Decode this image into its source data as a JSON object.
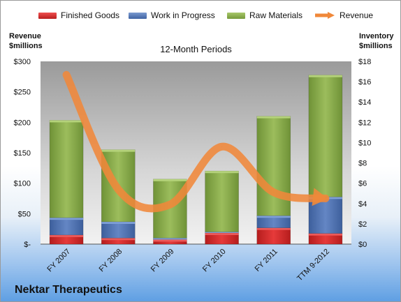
{
  "company_name": "Nektar Therapeutics",
  "chart_data": {
    "type": "bar",
    "stacked": true,
    "title": "12-Month Periods",
    "y_left_title": [
      "Revenue",
      "$millions"
    ],
    "y_right_title": [
      "Inventory",
      "$millions"
    ],
    "categories": [
      "FY 2007",
      "FY 2008",
      "FY 2009",
      "FY 2010",
      "FY 2011",
      "TTM 9-2012"
    ],
    "y_left_ticks": [
      "$-",
      "$50",
      "$100",
      "$150",
      "$200",
      "$250",
      "$300"
    ],
    "y_right_ticks": [
      "$0",
      "$2",
      "$4",
      "$6",
      "$8",
      "$10",
      "$12",
      "$14",
      "$16",
      "$18"
    ],
    "ylim_left": [
      0,
      300
    ],
    "ylim_right": [
      0,
      18
    ],
    "series": [
      {
        "name": "Finished Goods",
        "axis": "right",
        "color": "#d92b2b",
        "values": [
          0.9,
          0.6,
          0.45,
          1.1,
          1.6,
          1.05
        ]
      },
      {
        "name": "Work in Progress",
        "axis": "right",
        "color": "#5379b9",
        "values": [
          1.7,
          1.6,
          0.15,
          0.1,
          1.2,
          3.6
        ]
      },
      {
        "name": "Raw Materials",
        "axis": "right",
        "color": "#8db04f",
        "values": [
          9.6,
          7.1,
          5.8,
          6.0,
          9.8,
          12.0
        ]
      },
      {
        "name": "Revenue",
        "axis": "left",
        "color": "#f0883a",
        "type": "line",
        "values": [
          278,
          90,
          65,
          160,
          85,
          75
        ]
      }
    ],
    "legend_position": "top",
    "grid": false
  }
}
